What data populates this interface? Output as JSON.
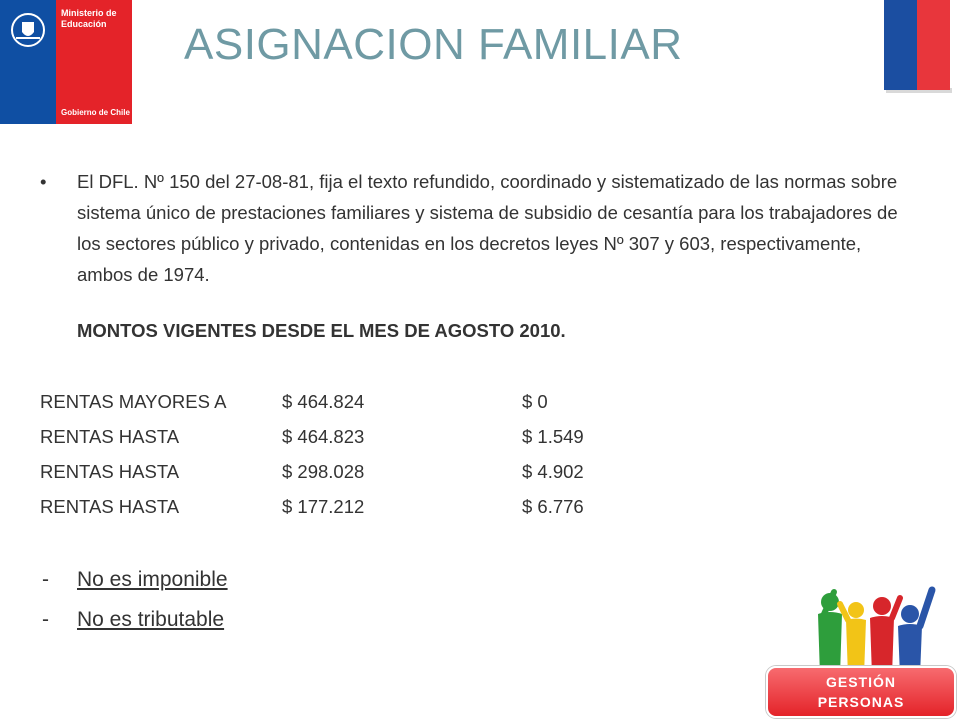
{
  "logo": {
    "line1": "Ministerio de",
    "line2": "Educación",
    "line3": "Gobierno de Chile"
  },
  "title": "ASIGNACION FAMILIAR",
  "bullet": "El DFL. Nº 150 del 27-08-81, fija el texto refundido, coordinado y sistematizado de las normas sobre sistema único de prestaciones familiares y sistema de subsidio de cesantía para los trabajadores de los sectores público y privado, contenidas en los decretos leyes Nº 307 y 603, respectivamente, ambos de 1974.",
  "montos_heading": "MONTOS VIGENTES DESDE EL MES DE AGOSTO 2010.",
  "rates": [
    {
      "label": "RENTAS MAYORES A",
      "limit": "$ 464.824",
      "amount": "$   0"
    },
    {
      "label": "RENTAS HASTA",
      "limit": "$ 464.823",
      "amount": "$  1.549"
    },
    {
      "label": "RENTAS HASTA",
      "limit": "$ 298.028",
      "amount": "$  4.902"
    },
    {
      "label": "RENTAS HASTA",
      "limit": "$ 177.212",
      "amount": "$  6.776"
    }
  ],
  "notes": [
    "No es imponible",
    "No es tributable"
  ],
  "badge": {
    "line1": "GESTIÓN",
    "line2": "PERSONAS"
  },
  "colors": {
    "title": "#6f9aa4",
    "blue": "#0f4fa3",
    "red": "#e42329"
  }
}
